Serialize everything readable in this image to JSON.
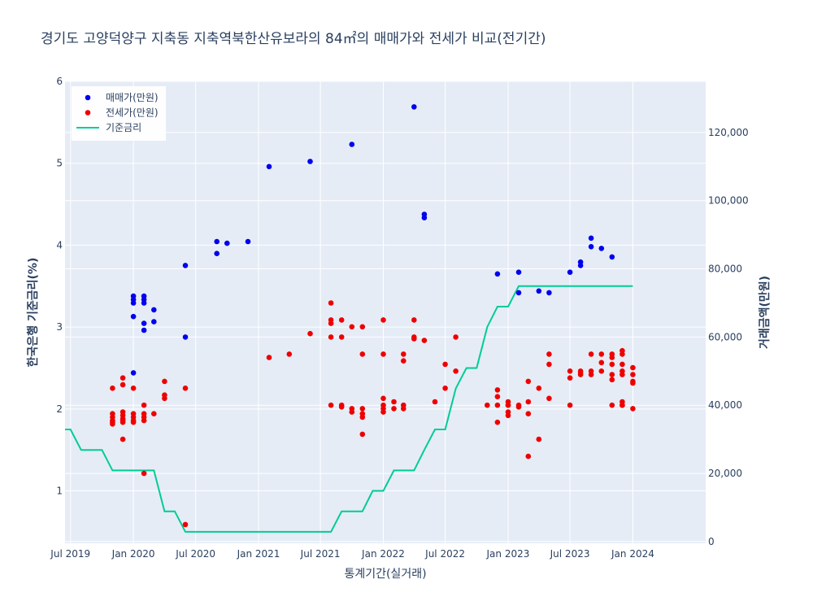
{
  "chart_data": {
    "type": "scatter",
    "title": "경기도 고양덕양구 지축동 지축역북한산유보라의 84㎡의 매매가와 전세가 비교(전기간)",
    "xlabel": "통계기간(실거래)",
    "ylabel_left": "한국은행 기준금리(%)",
    "ylabel_right": "거래금액(만원)",
    "x_range": [
      "2019-06-15",
      "2024-08-01"
    ],
    "y_left_range": [
      0.36,
      6
    ],
    "y_right_range": [
      -500,
      135000
    ],
    "x_ticks": [
      {
        "date": "2019-07-01",
        "label": "Jul 2019"
      },
      {
        "date": "2020-01-01",
        "label": "Jan 2020"
      },
      {
        "date": "2020-07-01",
        "label": "Jul 2020"
      },
      {
        "date": "2021-01-01",
        "label": "Jan 2021"
      },
      {
        "date": "2021-07-01",
        "label": "Jul 2021"
      },
      {
        "date": "2022-01-01",
        "label": "Jan 2022"
      },
      {
        "date": "2022-07-01",
        "label": "Jul 2022"
      },
      {
        "date": "2023-01-01",
        "label": "Jan 2023"
      },
      {
        "date": "2023-07-01",
        "label": "Jul 2023"
      },
      {
        "date": "2024-01-01",
        "label": "Jan 2024"
      }
    ],
    "y_left_ticks": [
      1,
      2,
      3,
      4,
      5,
      6
    ],
    "y_right_ticks": [
      {
        "value": 0,
        "label": "0"
      },
      {
        "value": 20000,
        "label": "20,000"
      },
      {
        "value": 40000,
        "label": "40,000"
      },
      {
        "value": 60000,
        "label": "60,000"
      },
      {
        "value": 80000,
        "label": "80,000"
      },
      {
        "value": 100000,
        "label": "100,000"
      },
      {
        "value": 120000,
        "label": "120,000"
      }
    ],
    "legend_position": "top-left",
    "grid": true,
    "colors": {
      "sale": "#0000ee",
      "jeonse": "#ee0000",
      "rate": "#00cc96",
      "plot_bg": "#e5ecf6"
    },
    "series": [
      {
        "name": "매매가(만원)",
        "axis": "right",
        "mode": "markers",
        "points": [
          [
            "2020-01-01",
            72000
          ],
          [
            "2020-01-01",
            71000
          ],
          [
            "2020-01-01",
            70000
          ],
          [
            "2020-01-01",
            66000
          ],
          [
            "2020-01-01",
            49500
          ],
          [
            "2020-02-01",
            72000
          ],
          [
            "2020-02-01",
            71000
          ],
          [
            "2020-02-01",
            70000
          ],
          [
            "2020-02-01",
            64000
          ],
          [
            "2020-02-01",
            62000
          ],
          [
            "2020-03-01",
            68000
          ],
          [
            "2020-03-01",
            64500
          ],
          [
            "2020-06-01",
            81000
          ],
          [
            "2020-06-01",
            60000
          ],
          [
            "2020-09-01",
            88000
          ],
          [
            "2020-09-01",
            84500
          ],
          [
            "2020-10-01",
            87500
          ],
          [
            "2020-12-01",
            88000
          ],
          [
            "2021-02-01",
            110000
          ],
          [
            "2021-06-01",
            111500
          ],
          [
            "2021-10-01",
            116500
          ],
          [
            "2022-04-01",
            127500
          ],
          [
            "2022-05-01",
            96000
          ],
          [
            "2022-05-01",
            95000
          ],
          [
            "2022-12-01",
            78500
          ],
          [
            "2023-02-01",
            79000
          ],
          [
            "2023-02-01",
            73000
          ],
          [
            "2023-04-01",
            73500
          ],
          [
            "2023-05-01",
            73000
          ],
          [
            "2023-07-01",
            79000
          ],
          [
            "2023-08-01",
            81000
          ],
          [
            "2023-08-01",
            82000
          ],
          [
            "2023-09-01",
            89000
          ],
          [
            "2023-09-01",
            86500
          ],
          [
            "2023-10-01",
            86000
          ],
          [
            "2023-11-01",
            83500
          ]
        ]
      },
      {
        "name": "전세가(만원)",
        "axis": "right",
        "mode": "markers",
        "points": [
          [
            "2019-11-01",
            45000
          ],
          [
            "2019-11-01",
            37500
          ],
          [
            "2019-11-01",
            36500
          ],
          [
            "2019-11-01",
            35500
          ],
          [
            "2019-11-01",
            35000
          ],
          [
            "2019-11-01",
            34500
          ],
          [
            "2019-12-01",
            48000
          ],
          [
            "2019-12-01",
            46000
          ],
          [
            "2019-12-01",
            38000
          ],
          [
            "2019-12-01",
            37000
          ],
          [
            "2019-12-01",
            36000
          ],
          [
            "2019-12-01",
            35500
          ],
          [
            "2019-12-01",
            35000
          ],
          [
            "2019-12-01",
            30000
          ],
          [
            "2020-01-01",
            45000
          ],
          [
            "2020-01-01",
            37500
          ],
          [
            "2020-01-01",
            36500
          ],
          [
            "2020-01-01",
            35500
          ],
          [
            "2020-01-01",
            35000
          ],
          [
            "2020-02-01",
            40000
          ],
          [
            "2020-02-01",
            37500
          ],
          [
            "2020-02-01",
            36500
          ],
          [
            "2020-02-01",
            35500
          ],
          [
            "2020-02-01",
            20000
          ],
          [
            "2020-03-01",
            37500
          ],
          [
            "2020-04-01",
            47000
          ],
          [
            "2020-04-01",
            43000
          ],
          [
            "2020-04-01",
            42000
          ],
          [
            "2020-06-01",
            45000
          ],
          [
            "2020-06-01",
            5000
          ],
          [
            "2021-02-01",
            54000
          ],
          [
            "2021-04-01",
            55000
          ],
          [
            "2021-06-01",
            61000
          ],
          [
            "2021-08-01",
            70000
          ],
          [
            "2021-08-01",
            65000
          ],
          [
            "2021-08-01",
            64000
          ],
          [
            "2021-08-01",
            60000
          ],
          [
            "2021-08-01",
            40000
          ],
          [
            "2021-09-01",
            65000
          ],
          [
            "2021-09-01",
            60000
          ],
          [
            "2021-09-01",
            40000
          ],
          [
            "2021-09-01",
            39500
          ],
          [
            "2021-10-01",
            63000
          ],
          [
            "2021-10-01",
            39000
          ],
          [
            "2021-10-01",
            38000
          ],
          [
            "2021-11-01",
            63000
          ],
          [
            "2021-11-01",
            55000
          ],
          [
            "2021-11-01",
            39000
          ],
          [
            "2021-11-01",
            37500
          ],
          [
            "2021-11-01",
            36500
          ],
          [
            "2021-11-01",
            31500
          ],
          [
            "2022-01-01",
            65000
          ],
          [
            "2022-01-01",
            55000
          ],
          [
            "2022-01-01",
            42000
          ],
          [
            "2022-01-01",
            40000
          ],
          [
            "2022-01-01",
            39000
          ],
          [
            "2022-01-01",
            38000
          ],
          [
            "2022-02-01",
            41000
          ],
          [
            "2022-02-01",
            39000
          ],
          [
            "2022-03-01",
            55000
          ],
          [
            "2022-03-01",
            53000
          ],
          [
            "2022-03-01",
            40000
          ],
          [
            "2022-03-01",
            39000
          ],
          [
            "2022-04-01",
            65000
          ],
          [
            "2022-04-01",
            60000
          ],
          [
            "2022-04-01",
            59500
          ],
          [
            "2022-05-01",
            59000
          ],
          [
            "2022-06-01",
            41000
          ],
          [
            "2022-07-01",
            52000
          ],
          [
            "2022-07-01",
            45000
          ],
          [
            "2022-08-01",
            60000
          ],
          [
            "2022-08-01",
            50000
          ],
          [
            "2022-11-01",
            40000
          ],
          [
            "2022-12-01",
            44500
          ],
          [
            "2022-12-01",
            42500
          ],
          [
            "2022-12-01",
            40000
          ],
          [
            "2022-12-01",
            35000
          ],
          [
            "2023-01-01",
            40000
          ],
          [
            "2023-01-01",
            41000
          ],
          [
            "2023-01-01",
            40000
          ],
          [
            "2023-01-01",
            38000
          ],
          [
            "2023-01-01",
            37000
          ],
          [
            "2023-02-01",
            40000
          ],
          [
            "2023-02-01",
            39500
          ],
          [
            "2023-03-01",
            47000
          ],
          [
            "2023-03-01",
            41000
          ],
          [
            "2023-03-01",
            37500
          ],
          [
            "2023-03-01",
            25000
          ],
          [
            "2023-04-01",
            45000
          ],
          [
            "2023-04-01",
            30000
          ],
          [
            "2023-05-01",
            55000
          ],
          [
            "2023-05-01",
            52000
          ],
          [
            "2023-05-01",
            42000
          ],
          [
            "2023-07-01",
            50000
          ],
          [
            "2023-07-01",
            48000
          ],
          [
            "2023-07-01",
            40000
          ],
          [
            "2023-08-01",
            50000
          ],
          [
            "2023-08-01",
            49500
          ],
          [
            "2023-08-01",
            49000
          ],
          [
            "2023-09-01",
            55000
          ],
          [
            "2023-09-01",
            50000
          ],
          [
            "2023-09-01",
            49000
          ],
          [
            "2023-10-01",
            55000
          ],
          [
            "2023-10-01",
            52500
          ],
          [
            "2023-10-01",
            50000
          ],
          [
            "2023-11-01",
            55000
          ],
          [
            "2023-11-01",
            54000
          ],
          [
            "2023-11-01",
            52000
          ],
          [
            "2023-11-01",
            49000
          ],
          [
            "2023-11-01",
            47500
          ],
          [
            "2023-11-01",
            40000
          ],
          [
            "2023-12-01",
            56000
          ],
          [
            "2023-12-01",
            55000
          ],
          [
            "2023-12-01",
            52000
          ],
          [
            "2023-12-01",
            50000
          ],
          [
            "2023-12-01",
            49000
          ],
          [
            "2023-12-01",
            41000
          ],
          [
            "2023-12-01",
            40000
          ],
          [
            "2023-12-01",
            40000
          ],
          [
            "2024-01-01",
            51000
          ],
          [
            "2024-01-01",
            49000
          ],
          [
            "2024-01-01",
            47000
          ],
          [
            "2024-01-01",
            46500
          ],
          [
            "2024-01-01",
            39000
          ]
        ]
      },
      {
        "name": "기준금리",
        "axis": "left",
        "mode": "lines",
        "points": [
          [
            "2019-06-15",
            1.75
          ],
          [
            "2019-07-01",
            1.75
          ],
          [
            "2019-08-01",
            1.5
          ],
          [
            "2019-09-01",
            1.5
          ],
          [
            "2019-10-01",
            1.5
          ],
          [
            "2019-11-01",
            1.25
          ],
          [
            "2019-12-01",
            1.25
          ],
          [
            "2020-01-01",
            1.25
          ],
          [
            "2020-02-01",
            1.25
          ],
          [
            "2020-03-01",
            1.25
          ],
          [
            "2020-04-01",
            0.75
          ],
          [
            "2020-05-01",
            0.75
          ],
          [
            "2020-06-01",
            0.5
          ],
          [
            "2020-07-01",
            0.5
          ],
          [
            "2021-07-01",
            0.5
          ],
          [
            "2021-08-01",
            0.5
          ],
          [
            "2021-09-01",
            0.75
          ],
          [
            "2021-10-01",
            0.75
          ],
          [
            "2021-11-01",
            0.75
          ],
          [
            "2021-12-01",
            1.0
          ],
          [
            "2022-01-01",
            1.0
          ],
          [
            "2022-02-01",
            1.25
          ],
          [
            "2022-03-01",
            1.25
          ],
          [
            "2022-04-01",
            1.25
          ],
          [
            "2022-05-01",
            1.5
          ],
          [
            "2022-06-01",
            1.75
          ],
          [
            "2022-07-01",
            1.75
          ],
          [
            "2022-08-01",
            2.25
          ],
          [
            "2022-09-01",
            2.5
          ],
          [
            "2022-10-01",
            2.5
          ],
          [
            "2022-11-01",
            3.0
          ],
          [
            "2022-12-01",
            3.25
          ],
          [
            "2023-01-01",
            3.25
          ],
          [
            "2023-02-01",
            3.5
          ],
          [
            "2023-03-01",
            3.5
          ],
          [
            "2023-12-01",
            3.5
          ],
          [
            "2024-01-01",
            3.5
          ]
        ]
      }
    ]
  }
}
